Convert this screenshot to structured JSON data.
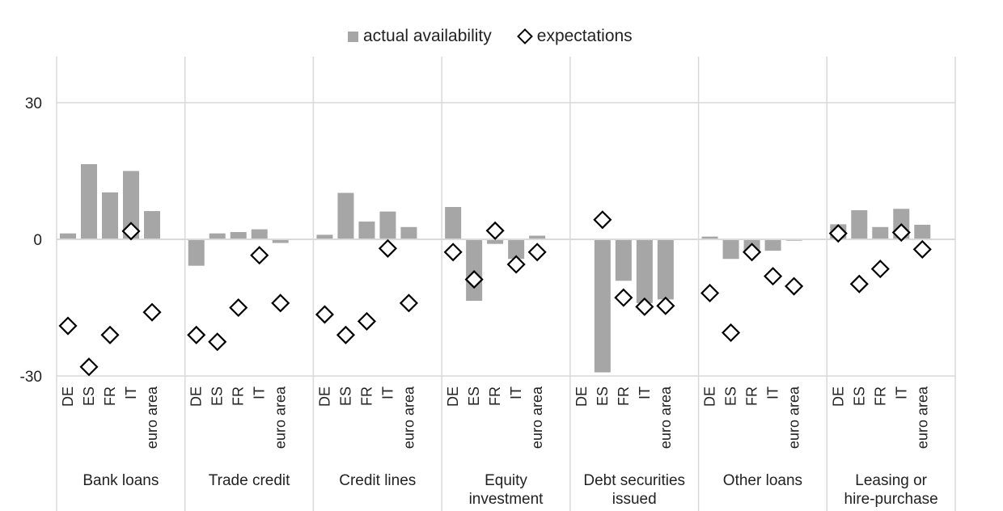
{
  "legend": {
    "bar_label": "actual availability",
    "marker_label": "expectations"
  },
  "chart_data": {
    "type": "bar",
    "ylim": [
      -30,
      30
    ],
    "yticks": [
      30,
      0,
      -30
    ],
    "grid": true,
    "legend_position": "top",
    "countries": [
      "DE",
      "ES",
      "FR",
      "IT",
      "euro area"
    ],
    "groups": [
      {
        "label": [
          "Bank loans"
        ],
        "actual": [
          1.3,
          16.5,
          10.3,
          15,
          6.2
        ],
        "expectations": [
          -19,
          -28,
          -21,
          1.8,
          -16
        ]
      },
      {
        "label": [
          "Trade credit"
        ],
        "actual": [
          -5.8,
          1.3,
          1.6,
          2.2,
          -0.8
        ],
        "expectations": [
          -21,
          -22.5,
          -15,
          -3.5,
          -14
        ]
      },
      {
        "label": [
          "Credit lines"
        ],
        "actual": [
          1,
          10.2,
          3.9,
          6.1,
          2.7
        ],
        "expectations": [
          -16.5,
          -21,
          -18,
          -2,
          -14
        ]
      },
      {
        "label": [
          "Equity",
          "investment"
        ],
        "actual": [
          7.1,
          -13.5,
          -1,
          -4.3,
          0.8
        ],
        "expectations": [
          -2.8,
          -8.8,
          1.9,
          -5.5,
          -2.8
        ]
      },
      {
        "label": [
          "Debt securities",
          "issued"
        ],
        "actual": [
          0,
          -29.2,
          -9.1,
          -14,
          -13.2
        ],
        "expectations": [
          null,
          4.3,
          -12.8,
          -14.8,
          -14.6
        ]
      },
      {
        "label": [
          "Other loans"
        ],
        "actual": [
          0.6,
          -4.3,
          -2.5,
          -2.5,
          -0.3
        ],
        "expectations": [
          -11.8,
          -20.5,
          -2.8,
          -8.1,
          -10.3
        ]
      },
      {
        "label": [
          "Leasing or",
          "hire-purchase"
        ],
        "actual": [
          3.3,
          6.4,
          2.7,
          6.7,
          3.2
        ],
        "expectations": [
          1.3,
          -9.8,
          -6.5,
          1.5,
          -2.2
        ]
      }
    ]
  }
}
